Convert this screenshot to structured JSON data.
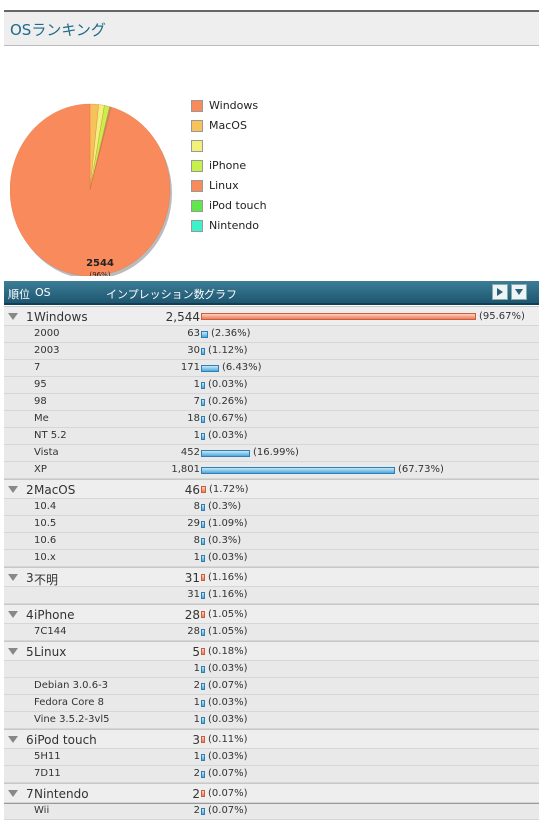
{
  "page": {
    "title": "OSランキング"
  },
  "pie_label": {
    "value": "2544",
    "percent": "(96%)"
  },
  "legend": [
    {
      "label": "Windows",
      "color": "#f88a5c"
    },
    {
      "label": "MacOS",
      "color": "#f7c25a"
    },
    {
      "label": "",
      "color": "#f0f07a"
    },
    {
      "label": "iPhone",
      "color": "#c6f04a"
    },
    {
      "label": "Linux",
      "color": "#f88a5c"
    },
    {
      "label": "iPod touch",
      "color": "#5ee84a"
    },
    {
      "label": "Nintendo",
      "color": "#3cf2c8"
    }
  ],
  "table_header": {
    "rank": "順位",
    "os": "OS",
    "impressions": "インプレッション数",
    "graph": "グラフ"
  },
  "table": [
    {
      "type": "parent",
      "rank": "1",
      "name": "Windows",
      "count": "2,544",
      "pct": "(95.67%)",
      "value": 95.67
    },
    {
      "type": "child",
      "name": "2000",
      "count": "63",
      "pct": "(2.36%)",
      "value": 2.36
    },
    {
      "type": "child",
      "name": "2003",
      "count": "30",
      "pct": "(1.12%)",
      "value": 1.12
    },
    {
      "type": "child",
      "name": "7",
      "count": "171",
      "pct": "(6.43%)",
      "value": 6.43
    },
    {
      "type": "child",
      "name": "95",
      "count": "1",
      "pct": "(0.03%)",
      "value": 0.03
    },
    {
      "type": "child",
      "name": "98",
      "count": "7",
      "pct": "(0.26%)",
      "value": 0.26
    },
    {
      "type": "child",
      "name": "Me",
      "count": "18",
      "pct": "(0.67%)",
      "value": 0.67
    },
    {
      "type": "child",
      "name": "NT 5.2",
      "count": "1",
      "pct": "(0.03%)",
      "value": 0.03
    },
    {
      "type": "child",
      "name": "Vista",
      "count": "452",
      "pct": "(16.99%)",
      "value": 16.99
    },
    {
      "type": "child",
      "name": "XP",
      "count": "1,801",
      "pct": "(67.73%)",
      "value": 67.73
    },
    {
      "type": "parent",
      "rank": "2",
      "name": "MacOS",
      "count": "46",
      "pct": "(1.72%)",
      "value": 1.72
    },
    {
      "type": "child",
      "name": "10.4",
      "count": "8",
      "pct": "(0.3%)",
      "value": 0.3
    },
    {
      "type": "child",
      "name": "10.5",
      "count": "29",
      "pct": "(1.09%)",
      "value": 1.09
    },
    {
      "type": "child",
      "name": "10.6",
      "count": "8",
      "pct": "(0.3%)",
      "value": 0.3
    },
    {
      "type": "child",
      "name": "10.x",
      "count": "1",
      "pct": "(0.03%)",
      "value": 0.03
    },
    {
      "type": "parent",
      "rank": "3",
      "name": "不明",
      "count": "31",
      "pct": "(1.16%)",
      "value": 1.16
    },
    {
      "type": "child",
      "name": "",
      "count": "31",
      "pct": "(1.16%)",
      "value": 1.16
    },
    {
      "type": "parent",
      "rank": "4",
      "name": "iPhone",
      "count": "28",
      "pct": "(1.05%)",
      "value": 1.05
    },
    {
      "type": "child",
      "name": "7C144",
      "count": "28",
      "pct": "(1.05%)",
      "value": 1.05
    },
    {
      "type": "parent",
      "rank": "5",
      "name": "Linux",
      "count": "5",
      "pct": "(0.18%)",
      "value": 0.18
    },
    {
      "type": "child",
      "name": "",
      "count": "1",
      "pct": "(0.03%)",
      "value": 0.03
    },
    {
      "type": "child",
      "name": "Debian 3.0.6-3",
      "count": "2",
      "pct": "(0.07%)",
      "value": 0.07
    },
    {
      "type": "child",
      "name": "Fedora Core 8",
      "count": "1",
      "pct": "(0.03%)",
      "value": 0.03
    },
    {
      "type": "child",
      "name": "Vine 3.5.2-3vl5",
      "count": "1",
      "pct": "(0.03%)",
      "value": 0.03
    },
    {
      "type": "parent",
      "rank": "6",
      "name": "iPod touch",
      "count": "3",
      "pct": "(0.11%)",
      "value": 0.11
    },
    {
      "type": "child",
      "name": "5H11",
      "count": "1",
      "pct": "(0.03%)",
      "value": 0.03
    },
    {
      "type": "child",
      "name": "7D11",
      "count": "2",
      "pct": "(0.07%)",
      "value": 0.07
    },
    {
      "type": "parent",
      "rank": "7",
      "name": "Nintendo",
      "count": "2",
      "pct": "(0.07%)",
      "value": 0.07
    },
    {
      "type": "child",
      "name": "Wii",
      "count": "2",
      "pct": "(0.07%)",
      "value": 0.07
    }
  ],
  "chart_data": {
    "type": "pie",
    "categories": [
      "Windows",
      "MacOS",
      "",
      "iPhone",
      "Linux",
      "iPod touch",
      "Nintendo"
    ],
    "values": [
      2544,
      46,
      31,
      28,
      5,
      3,
      2
    ],
    "colors": [
      "#f88a5c",
      "#f7c25a",
      "#f0f07a",
      "#c6f04a",
      "#f88a5c",
      "#5ee84a",
      "#3cf2c8"
    ],
    "data_labels": [
      {
        "category": "Windows",
        "value": "2544",
        "percent": "(96%)"
      }
    ],
    "legend": "right"
  }
}
